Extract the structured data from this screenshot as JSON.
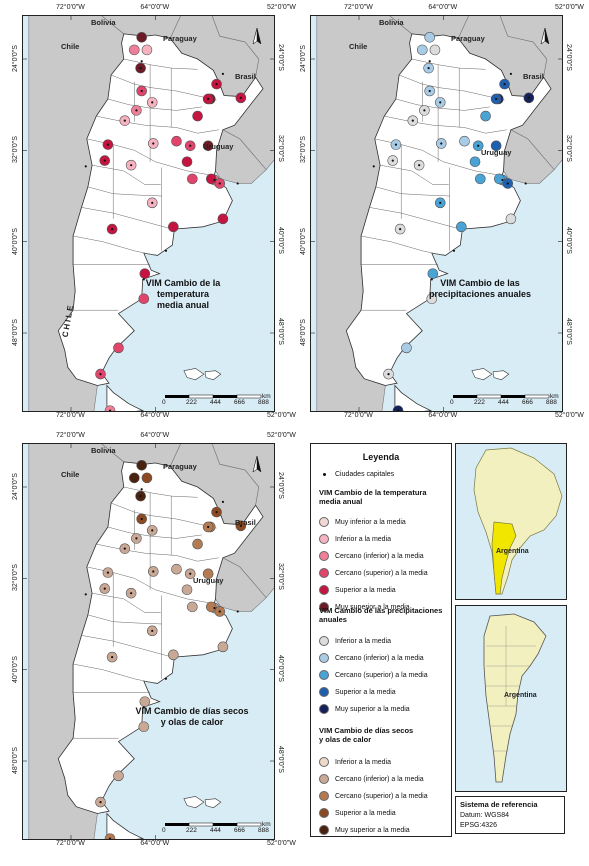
{
  "colors": {
    "water": "#d8ecf6",
    "argentina": "#ffffff",
    "neighbors": "#c9c9c9",
    "inset_highlight": "#f0e600",
    "inset_land": "#f3f0c0",
    "temp": [
      "#f1d8d3",
      "#f7b2c0",
      "#ef7f98",
      "#e1456c",
      "#c4143f",
      "#6b1a26"
    ],
    "precip": [
      "#dcdcdc",
      "#a9cce6",
      "#4aa3d5",
      "#1f5fad",
      "#14205a"
    ],
    "dry": [
      "#ecd9c9",
      "#c9a895",
      "#b47b52",
      "#8c4a22",
      "#4a220f"
    ]
  },
  "axes": {
    "lon_labels": [
      "72°0'0\"W",
      "64°0'0\"W",
      "52°0'0\"W"
    ],
    "lat_labels": [
      "24°0'0\"S",
      "32°0'0\"S",
      "40°0'0\"S",
      "48°0'0\"S"
    ]
  },
  "countries": {
    "bolivia": "Bolivia",
    "paraguay": "Paraguay",
    "chile": "Chile",
    "brasil": "Brasil",
    "uruguay": "Uruguay",
    "chile_coast": "CHILE"
  },
  "scale": {
    "ticks": [
      "0",
      "222",
      "444",
      "666",
      "888"
    ],
    "unit": "km"
  },
  "maps": {
    "temp": {
      "title_line1": "VIM Cambio de la temperatura",
      "title_line2": "media anual"
    },
    "precip": {
      "title_line1": "VIM Cambio de las",
      "title_line2": "precipitaciones anuales"
    },
    "dry": {
      "title_line1": "VIM Cambio de días secos",
      "title_line2": "y olas de calor"
    }
  },
  "legend": {
    "title": "Leyenda",
    "capitals": "Ciudades capitales",
    "temp_head_1": "VIM Cambio de la temperatura",
    "temp_head_2": "media anual",
    "temp_items": [
      "Muy inferior a la media",
      "Inferior a la media",
      "Cercano (inferior) a la media",
      "Cercano (superior) a la media",
      "Superior a la media",
      "Muy superior a la media"
    ],
    "precip_head_1": "VIM Cambio de las precipitaciones",
    "precip_head_2": "anuales",
    "precip_items": [
      "Inferior a la media",
      "Cercano (inferior) a la media",
      "Cercano (superior) a la media",
      "Superior a la media",
      "Muy superior a la media"
    ],
    "dry_head_1": "VIM Cambio de días secos",
    "dry_head_2": "y olas de calor",
    "dry_items": [
      "Inferior a la media",
      "Cercano (inferior) a la media",
      "Cercano (superior) a la media",
      "Superior a la media",
      "Muy superior a la media"
    ]
  },
  "insets": {
    "continent_label": "Argentina",
    "provinces_label": "Argentina"
  },
  "reference": {
    "title": "Sistema de referencia",
    "datum": "Datum: WGS84",
    "epsg": "EPSG:4326"
  },
  "stations": [
    {
      "lon": -65.4,
      "lat": -24.8,
      "temp": 5,
      "precip": 1,
      "dry": 4
    },
    {
      "lon": -65.3,
      "lat": -22.1,
      "temp": 5,
      "precip": 1,
      "dry": 4
    },
    {
      "lon": -66.0,
      "lat": -23.2,
      "temp": 2,
      "precip": 1,
      "dry": 4
    },
    {
      "lon": -64.8,
      "lat": -23.2,
      "temp": 1,
      "precip": 0,
      "dry": 3
    },
    {
      "lon": -65.3,
      "lat": -26.8,
      "temp": 3,
      "precip": 1,
      "dry": 3
    },
    {
      "lon": -64.3,
      "lat": -27.8,
      "temp": 1,
      "precip": 1,
      "dry": 1
    },
    {
      "lon": -65.8,
      "lat": -28.5,
      "temp": 2,
      "precip": 0,
      "dry": 1
    },
    {
      "lon": -66.9,
      "lat": -29.4,
      "temp": 1,
      "precip": 0,
      "dry": 1
    },
    {
      "lon": -68.8,
      "lat": -32.9,
      "temp": 4,
      "precip": 0,
      "dry": 1
    },
    {
      "lon": -68.5,
      "lat": -31.5,
      "temp": 4,
      "precip": 1,
      "dry": 1
    },
    {
      "lon": -66.3,
      "lat": -33.3,
      "temp": 1,
      "precip": 0,
      "dry": 1
    },
    {
      "lon": -64.2,
      "lat": -31.4,
      "temp": 1,
      "precip": 1,
      "dry": 1
    },
    {
      "lon": -62.0,
      "lat": -31.2,
      "temp": 3,
      "precip": 1,
      "dry": 1
    },
    {
      "lon": -60.7,
      "lat": -31.6,
      "temp": 3,
      "precip": 2,
      "dry": 1
    },
    {
      "lon": -59.0,
      "lat": -31.6,
      "temp": 5,
      "precip": 3,
      "dry": 2
    },
    {
      "lon": -61.0,
      "lat": -33.0,
      "temp": 4,
      "precip": 2,
      "dry": 1
    },
    {
      "lon": -60.5,
      "lat": -34.5,
      "temp": 3,
      "precip": 2,
      "dry": 1
    },
    {
      "lon": -58.4,
      "lat": -34.6,
      "temp": 2,
      "precip": 2,
      "dry": 1
    },
    {
      "lon": -57.9,
      "lat": -34.9,
      "temp": 3,
      "precip": 3,
      "dry": 2
    },
    {
      "lon": -57.6,
      "lat": -38.0,
      "temp": 4,
      "precip": 0,
      "dry": 1
    },
    {
      "lon": -62.3,
      "lat": -38.7,
      "temp": 4,
      "precip": 2,
      "dry": 1
    },
    {
      "lon": -64.3,
      "lat": -36.6,
      "temp": 1,
      "precip": 2,
      "dry": 1
    },
    {
      "lon": -68.1,
      "lat": -38.9,
      "temp": 4,
      "precip": 0,
      "dry": 1
    },
    {
      "lon": -65.0,
      "lat": -42.8,
      "temp": 4,
      "precip": 2,
      "dry": 1
    },
    {
      "lon": -65.1,
      "lat": -45.0,
      "temp": 3,
      "precip": 0,
      "dry": 1
    },
    {
      "lon": -67.5,
      "lat": -49.3,
      "temp": 3,
      "precip": 1,
      "dry": 1
    },
    {
      "lon": -69.2,
      "lat": -51.6,
      "temp": 3,
      "precip": 0,
      "dry": 1
    },
    {
      "lon": -68.3,
      "lat": -54.8,
      "temp": 2,
      "precip": 4,
      "dry": 2
    },
    {
      "lon": -58.2,
      "lat": -26.2,
      "temp": 4,
      "precip": 3,
      "dry": 3
    },
    {
      "lon": -55.9,
      "lat": -27.4,
      "temp": 4,
      "precip": 4,
      "dry": 3
    },
    {
      "lon": -58.8,
      "lat": -27.5,
      "temp": 5,
      "precip": 4,
      "dry": 2
    },
    {
      "lon": -59.0,
      "lat": -27.5,
      "temp": 4,
      "precip": 3,
      "dry": 2
    },
    {
      "lon": -60.0,
      "lat": -29.0,
      "temp": 4,
      "precip": 2,
      "dry": 2
    },
    {
      "lon": -58.7,
      "lat": -34.5,
      "temp": 4,
      "precip": 2,
      "dry": 2
    }
  ]
}
